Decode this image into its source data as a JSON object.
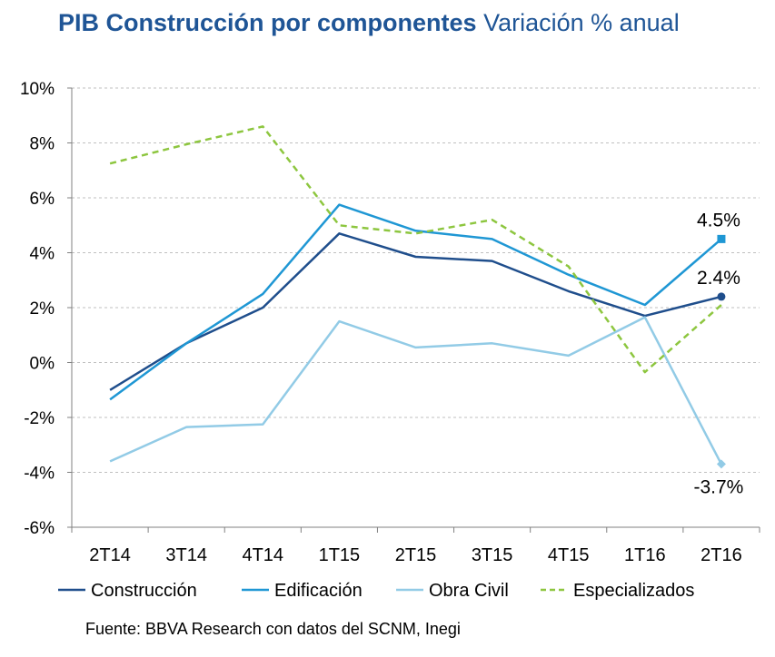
{
  "header": {
    "title_bold": "PIB Construcción por componentes",
    "title_rest": "Variación % anual"
  },
  "source": "Fuente: BBVA Research con datos del SCNM, Inegi",
  "colors": {
    "construccion": "#1f4e8c",
    "edificacion": "#1f97d4",
    "obra_civil": "#92cbe6",
    "especializados": "#8dc63f",
    "grid": "#bfbfbf",
    "axis": "#808080"
  },
  "chart_data": {
    "type": "line",
    "title": "PIB Construcción por componentes Variación % anual",
    "xlabel": "",
    "ylabel": "",
    "ylim": [
      -6,
      10
    ],
    "yticks": [
      -6,
      -4,
      -2,
      0,
      2,
      4,
      6,
      8,
      10
    ],
    "ytick_labels": [
      "-6%",
      "-4%",
      "-2%",
      "0%",
      "2%",
      "4%",
      "6%",
      "8%",
      "10%"
    ],
    "grid": true,
    "legend_position": "bottom",
    "categories": [
      "2T14",
      "3T14",
      "4T14",
      "1T15",
      "2T15",
      "3T15",
      "4T15",
      "1T16",
      "2T16"
    ],
    "series": [
      {
        "key": "construccion",
        "name": "Construcción",
        "dashed": false,
        "values": [
          -1.0,
          0.7,
          2.0,
          4.7,
          3.85,
          3.7,
          2.6,
          1.7,
          2.4
        ],
        "end_marker": "circle",
        "end_label": "2.4%"
      },
      {
        "key": "edificacion",
        "name": "Edificación",
        "dashed": false,
        "values": [
          -1.35,
          0.7,
          2.5,
          5.75,
          4.8,
          4.5,
          3.2,
          2.1,
          4.5
        ],
        "end_marker": "square",
        "end_label": "4.5%"
      },
      {
        "key": "obra_civil",
        "name": "Obra Civil",
        "dashed": false,
        "values": [
          -3.6,
          -2.35,
          -2.25,
          1.5,
          0.55,
          0.7,
          0.25,
          1.65,
          -3.7
        ],
        "end_marker": "diamond",
        "end_label": "-3.7%"
      },
      {
        "key": "especializados",
        "name": "Especializados",
        "dashed": true,
        "values": [
          7.25,
          7.95,
          8.6,
          5.0,
          4.7,
          5.2,
          3.5,
          -0.35,
          2.1
        ],
        "end_marker": null,
        "end_label": null
      }
    ]
  }
}
